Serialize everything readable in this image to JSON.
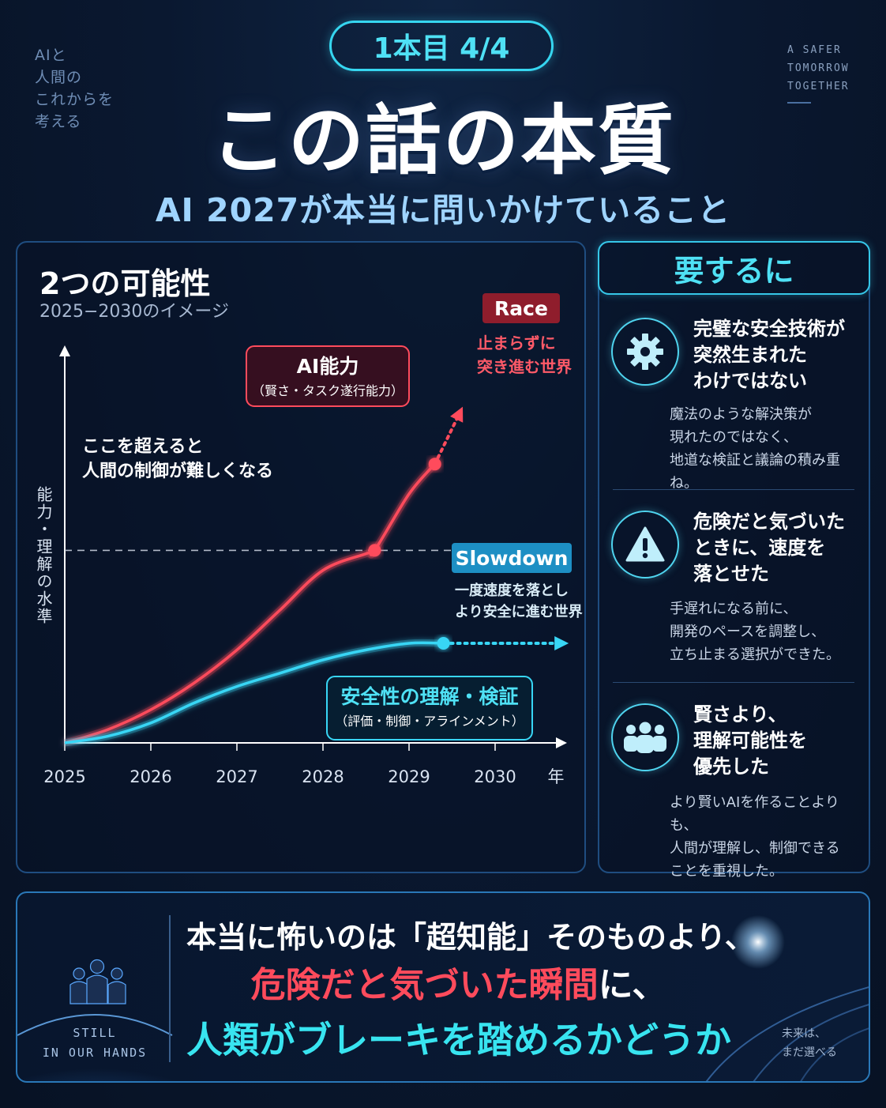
{
  "header": {
    "side_note_left": [
      "AIと",
      "人間の",
      "これからを",
      "考える"
    ],
    "side_note_right": [
      "A SAFER",
      "TOMORROW",
      "TOGETHER"
    ],
    "badge": "1本目 4/4",
    "title": "この話の本質",
    "subtitle": "AI 2027が本当に問いかけていること"
  },
  "chart_panel": {
    "title": "2つの可能性",
    "subtitle": "2025−2030のイメージ"
  },
  "chart_data": {
    "type": "line",
    "x": [
      2025,
      2026,
      2027,
      2028,
      2029,
      2030
    ],
    "x_tick_labels": [
      "2025",
      "2026",
      "2027",
      "2028",
      "2029",
      "2030"
    ],
    "x_unit": "年",
    "ylabel": "能力・理解の水準",
    "ylim": [
      0,
      100
    ],
    "threshold": {
      "value": 58,
      "label_lines": [
        "ここを超えると",
        "人間の制御が難しくなる"
      ]
    },
    "series": [
      {
        "key": "ai",
        "box_title": "AI能力",
        "box_sub": "（賢さ・タスク遂行能力）",
        "color": "#ff4b5c",
        "x": [
          2025,
          2025.5,
          2026,
          2026.5,
          2027,
          2027.5,
          2028,
          2028.5,
          2028.6,
          2029,
          2029.3
        ],
        "y": [
          0,
          4,
          10,
          18,
          28,
          40,
          52,
          57,
          58,
          75,
          84
        ],
        "marked_points": [
          [
            2028.6,
            58
          ],
          [
            2029.3,
            84
          ]
        ],
        "extension_to": [
          2029.6,
          100
        ],
        "tag": "Race",
        "tag_desc": [
          "止まらずに",
          "突き進む世界"
        ]
      },
      {
        "key": "safety",
        "box_title": "安全性の理解・検証",
        "box_sub": "（評価・制御・アラインメント）",
        "color": "#38d6f5",
        "x": [
          2025,
          2025.5,
          2026,
          2026.5,
          2027,
          2027.5,
          2028,
          2028.5,
          2029,
          2029.4
        ],
        "y": [
          0,
          2,
          6,
          12,
          17,
          21,
          25,
          28,
          30,
          30
        ],
        "marked_points": [
          [
            2029.4,
            30
          ]
        ],
        "extension_to": [
          2030.8,
          30
        ],
        "tag": "Slowdown",
        "tag_desc": [
          "一度速度を落とし",
          "より安全に進む世界"
        ]
      }
    ],
    "grid": false
  },
  "summary": {
    "heading": "要するに",
    "items": [
      {
        "icon": "gear-icon",
        "title": "完璧な安全技術が\n突然生まれた\nわけではない",
        "body": "魔法のような解決策が\n現れたのではなく、\n地道な検証と議論の積み重ね。"
      },
      {
        "icon": "warning-icon",
        "title": "危険だと気づいた\nときに、速度を\n落とせた",
        "body": "手遅れになる前に、\n開発のペースを調整し、\n立ち止まる選択ができた。"
      },
      {
        "icon": "people-icon",
        "title": "賢さより、\n理解可能性を\n優先した",
        "body": "より賢いAIを作ることよりも、\n人間が理解し、制御できる\nことを重視した。"
      }
    ]
  },
  "banner": {
    "still_lines": [
      "STILL",
      "IN OUR HANDS"
    ],
    "line1": "本当に怖いのは「超知能」そのものより、",
    "line2_main": "危険だと気づいた瞬間",
    "line2_tail": "に、",
    "line3": "人類がブレーキを踏めるかどうか",
    "future_lines": [
      "未来は、",
      "まだ選べる"
    ]
  },
  "colors": {
    "accent_cyan": "#36d6f0",
    "race_red": "#ff4b5c",
    "background": "#0a1830"
  }
}
